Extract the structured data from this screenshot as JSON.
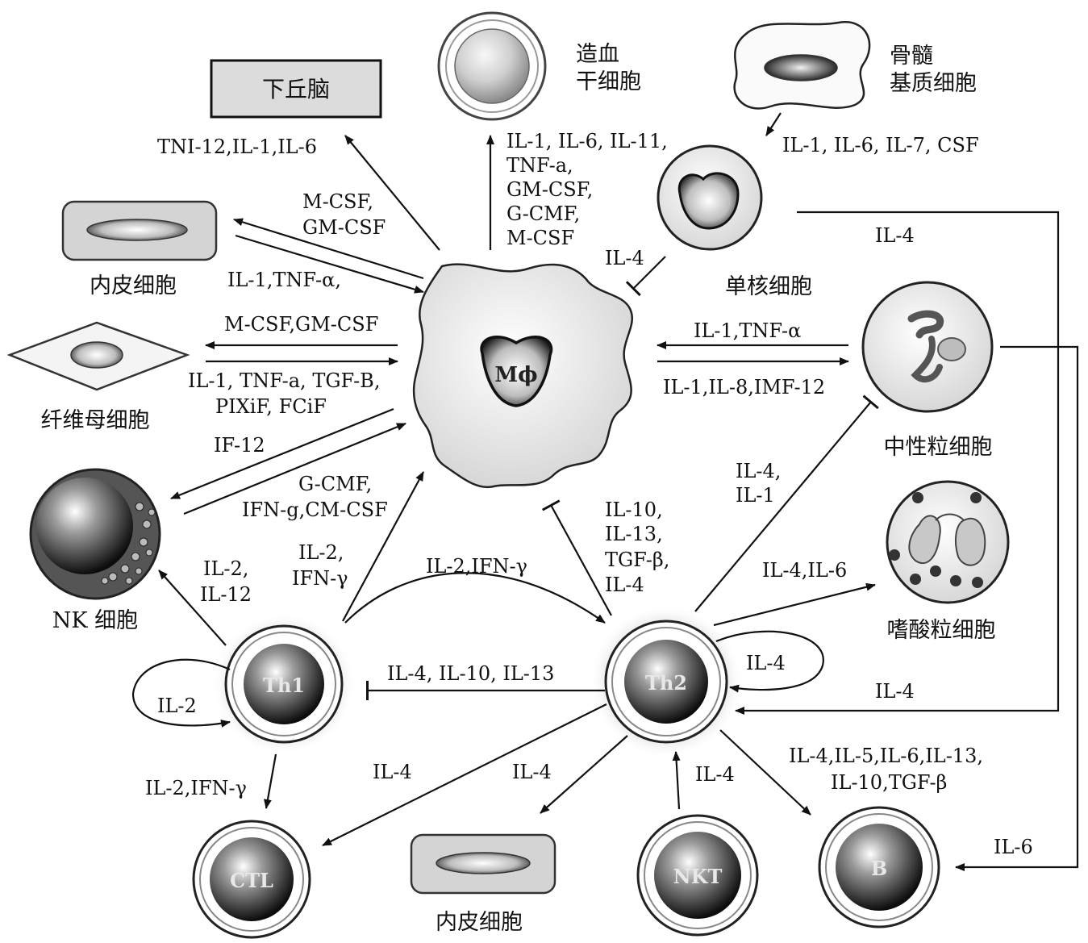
{
  "nodes": {
    "hypothalamus": "下丘脑",
    "hsc": [
      "造血",
      "干细胞"
    ],
    "bm_stroma": [
      "骨髓",
      "基质细胞"
    ],
    "endothelial_top": "内皮细胞",
    "monocyte": "单核细胞",
    "fibroblast": "纤维母细胞",
    "neutrophil": "中性粒细胞",
    "nk": "NK 细胞",
    "eosinophil": "嗜酸粒细胞",
    "endothelial_bottom": "内皮细胞",
    "macrophage": "Mϕ",
    "th1": "Th1",
    "th2": "Th2",
    "ctl": "CTL",
    "nkt": "NKT",
    "b": "B"
  },
  "labels": {
    "mp_to_hypo": "TNI-12,IL-1,IL-6",
    "mp_to_hsc": [
      "IL-1, IL-6, IL-11,",
      "TNF-a,",
      "GM-CSF,",
      "G-CMF,",
      "M-CSF"
    ],
    "bm_to_mono": "IL-1, IL-6, IL-7, CSF",
    "mp_to_endo": [
      "M-CSF,",
      "GM-CSF"
    ],
    "endo_to_mp": "IL-1,TNF-α,",
    "mono_il4": "IL-4",
    "mono_th2_il4": "IL-4",
    "mp_to_fibro": "M-CSF,GM-CSF",
    "fibro_to_mp": [
      "IL-1, TNF-a, TGF-B,",
      "PIXiF, FCiF"
    ],
    "mp_to_neut": "IL-1,TNF-α",
    "neut_to_mp": "IL-1,IL-8,IMF-12",
    "mp_to_nk": "IF-12",
    "nk_to_mp": [
      "G-CMF,",
      "IFN-g,CM-CSF"
    ],
    "th2_to_neut": [
      "IL-4,",
      "IL-1"
    ],
    "th2_to_mp": [
      "IL-10,",
      "IL-13,",
      "TGF-β,",
      "IL-4"
    ],
    "th1_to_mp": [
      "IL-2,",
      "IFN-γ"
    ],
    "th1_to_nk": [
      "IL-2,",
      "IL-12"
    ],
    "th1_to_th2": "IL-2,IFN-γ",
    "th2_to_eos": "IL-4,IL-6",
    "th2_self": "IL-4",
    "th1_self": "IL-2",
    "th2_to_th1": "IL-4, IL-10, IL-13",
    "neut_to_th2": "IL-4",
    "th2_to_b": [
      "IL-4,IL-5,IL-6,IL-13,",
      "IL-10,TGF-β"
    ],
    "th2_to_ctl": "IL-4",
    "th2_to_endo": "IL-4",
    "nkt_to_th2": "IL-4",
    "th1_to_ctl": "IL-2,IFN-γ",
    "neut_to_b": "IL-6"
  }
}
